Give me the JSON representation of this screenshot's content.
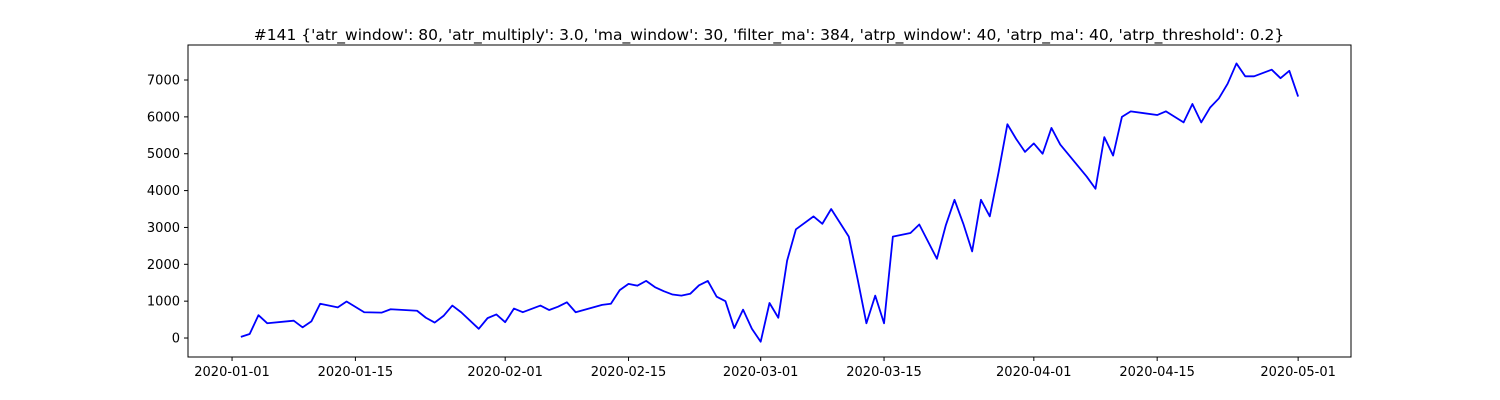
{
  "chart_data": {
    "type": "line",
    "title": "#141 {'atr_window': 80, 'atr_multiply': 3.0, 'ma_window': 30, 'filter_ma': 384, 'atrp_window': 40, 'atrp_ma': 40, 'atrp_threshold': 0.2}",
    "color": "#0000ff",
    "x": [
      "2020-01-02",
      "2020-01-03",
      "2020-01-04",
      "2020-01-05",
      "2020-01-08",
      "2020-01-09",
      "2020-01-10",
      "2020-01-11",
      "2020-01-13",
      "2020-01-14",
      "2020-01-16",
      "2020-01-18",
      "2020-01-19",
      "2020-01-22",
      "2020-01-23",
      "2020-01-24",
      "2020-01-25",
      "2020-01-26",
      "2020-01-27",
      "2020-01-29",
      "2020-01-30",
      "2020-01-31",
      "2020-02-01",
      "2020-02-02",
      "2020-02-03",
      "2020-02-05",
      "2020-02-06",
      "2020-02-07",
      "2020-02-08",
      "2020-02-09",
      "2020-02-12",
      "2020-02-13",
      "2020-02-14",
      "2020-02-15",
      "2020-02-16",
      "2020-02-17",
      "2020-02-18",
      "2020-02-19",
      "2020-02-20",
      "2020-02-21",
      "2020-02-22",
      "2020-02-23",
      "2020-02-24",
      "2020-02-25",
      "2020-02-26",
      "2020-02-27",
      "2020-02-28",
      "2020-02-29",
      "2020-03-01",
      "2020-03-02",
      "2020-03-03",
      "2020-03-04",
      "2020-03-05",
      "2020-03-07",
      "2020-03-08",
      "2020-03-09",
      "2020-03-11",
      "2020-03-12",
      "2020-03-13",
      "2020-03-14",
      "2020-03-15",
      "2020-03-16",
      "2020-03-18",
      "2020-03-19",
      "2020-03-21",
      "2020-03-22",
      "2020-03-23",
      "2020-03-24",
      "2020-03-25",
      "2020-03-26",
      "2020-03-27",
      "2020-03-28",
      "2020-03-29",
      "2020-03-30",
      "2020-03-31",
      "2020-04-01",
      "2020-04-02",
      "2020-04-03",
      "2020-04-04",
      "2020-04-07",
      "2020-04-08",
      "2020-04-09",
      "2020-04-10",
      "2020-04-11",
      "2020-04-12",
      "2020-04-15",
      "2020-04-16",
      "2020-04-17",
      "2020-04-18",
      "2020-04-19",
      "2020-04-20",
      "2020-04-21",
      "2020-04-22",
      "2020-04-23",
      "2020-04-24",
      "2020-04-25",
      "2020-04-26",
      "2020-04-28",
      "2020-04-29",
      "2020-04-30",
      "2020-05-01"
    ],
    "values": [
      30,
      110,
      620,
      400,
      470,
      290,
      450,
      930,
      830,
      990,
      700,
      690,
      780,
      740,
      550,
      420,
      600,
      880,
      700,
      250,
      540,
      640,
      430,
      800,
      700,
      880,
      760,
      850,
      970,
      700,
      900,
      930,
      1300,
      1470,
      1420,
      1550,
      1380,
      1270,
      1180,
      1150,
      1200,
      1430,
      1550,
      1120,
      1000,
      270,
      770,
      250,
      -100,
      950,
      550,
      2100,
      2950,
      3300,
      3100,
      3500,
      2750,
      1600,
      400,
      1150,
      400,
      2750,
      2850,
      3080,
      2150,
      3050,
      3750,
      3100,
      2350,
      3750,
      3300,
      4500,
      5800,
      5400,
      5050,
      5280,
      5000,
      5700,
      5250,
      4380,
      4050,
      5450,
      4950,
      6000,
      6150,
      6050,
      6150,
      6000,
      5850,
      6350,
      5850,
      6250,
      6500,
      6900,
      7450,
      7100,
      7100,
      7280,
      7050,
      7250,
      6550
    ],
    "xlim": [
      "2019-12-27",
      "2020-05-07"
    ],
    "xticks": [
      "2020-01-01",
      "2020-01-15",
      "2020-02-01",
      "2020-02-15",
      "2020-03-01",
      "2020-03-15",
      "2020-04-01",
      "2020-04-15",
      "2020-05-01"
    ],
    "ylim": [
      -515,
      7950
    ],
    "yticks": [
      0,
      1000,
      2000,
      3000,
      4000,
      5000,
      6000,
      7000
    ],
    "grid": false
  }
}
